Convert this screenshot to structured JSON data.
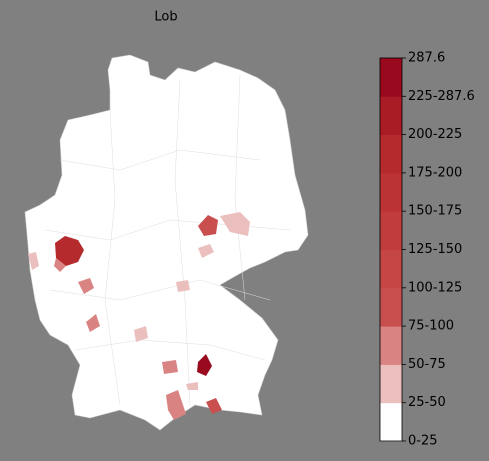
{
  "title": "Lob",
  "colorbar": {
    "labels": [
      "0-25",
      "25-50",
      "50-75",
      "75-100",
      "100-125",
      "125-150",
      "150-175",
      "175-200",
      "200-225",
      "225-287.6",
      "287.6"
    ],
    "colors": [
      "#ffffff",
      "#ecbfbf",
      "#d98383",
      "#c94f4f",
      "#c64646",
      "#c13d3d",
      "#bc3333",
      "#b52a2c",
      "#a91b25",
      "#990a1e"
    ]
  }
}
